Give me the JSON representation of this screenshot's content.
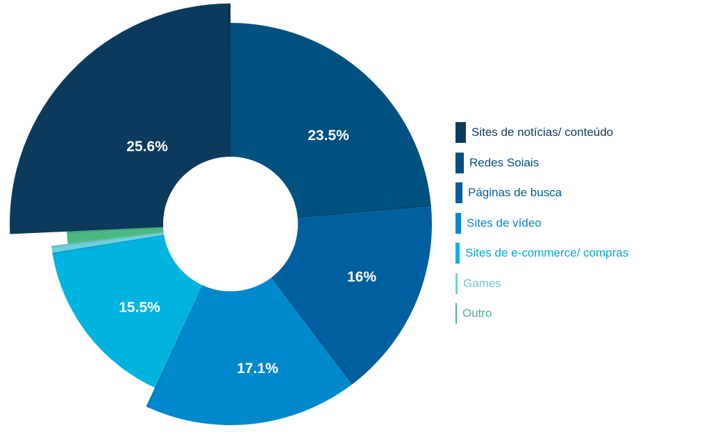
{
  "chart_data": {
    "type": "pie",
    "variant": "donut",
    "legend_position": "right",
    "slices": [
      {
        "label": "Sites de notícias/ conteúdo",
        "value": 25.6,
        "value_label": "25.6%",
        "color": "#0b3a5c"
      },
      {
        "label": "Redes Soiais",
        "value": 23.5,
        "value_label": "23.5%",
        "color": "#005080"
      },
      {
        "label": "Páginas de busca",
        "value": 16,
        "value_label": "16%",
        "color": "#005f9e"
      },
      {
        "label": "Sites de vídeo",
        "value": 17.1,
        "value_label": "17.1%",
        "color": "#0088cc"
      },
      {
        "label": "Sites de e-commerce/ compras",
        "value": 15.5,
        "value_label": "15.5%",
        "color": "#00b4df"
      },
      {
        "label": "Games",
        "value": 0.6,
        "value_label": "",
        "color": "#6fd0dc"
      },
      {
        "label": "Outro",
        "value": 1.2,
        "value_label": "",
        "color": "#4cb883"
      }
    ]
  }
}
